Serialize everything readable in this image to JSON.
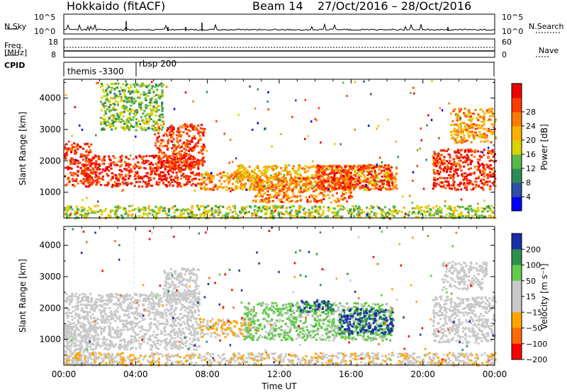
{
  "header": {
    "station": "Hokkaido (fitACF)",
    "beam": "Beam 14",
    "date_range": "27/Oct/2016 – 28/Oct/2016"
  },
  "strip": {
    "nsky_label": "N.Sky",
    "nsearch_label": "N.Search",
    "nsky_ticks": [
      "10^5",
      "10^0"
    ],
    "nsearch_ticks": [
      "10^5",
      "10^0"
    ],
    "freq_label": "Freq.",
    "freq_unit": "[MHz]",
    "freq_ticks": [
      "18",
      "8"
    ],
    "nave_label": "Nave",
    "nave_ticks": [
      "60",
      "0"
    ],
    "cpid_label": "CPID",
    "cpid_items": [
      "themis -3300",
      "rbsp 200"
    ]
  },
  "colors": {
    "power": [
      "#0000ff",
      "#2f4fa8",
      "#2e8b57",
      "#5ab84a",
      "#d8d200",
      "#ffb000",
      "#ff7a00",
      "#ff3c00",
      "#ee0000"
    ],
    "velocity": [
      "#1a2ea8",
      "#2d8f4a",
      "#63c94b",
      "#c8c8c8",
      "#c8c8c8",
      "#ffa500",
      "#ff6a00",
      "#ff0000"
    ],
    "ground_scatter": "#c8c8c8"
  },
  "chart_data": [
    {
      "type": "heatmap",
      "panel": "power",
      "ylabel": "Slant Range [km]",
      "xlabel": "Time UT",
      "x_ticks": [
        "00:00",
        "04:00",
        "08:00",
        "12:00",
        "16:00",
        "20:00",
        "00:00"
      ],
      "xlim": [
        0,
        24
      ],
      "ylim": [
        180,
        4600
      ],
      "y_ticks": [
        1000,
        2000,
        3000,
        4000
      ],
      "colorbar": {
        "label": "Power [dB]",
        "ticks": [
          "4",
          "8",
          "12",
          "16",
          "20",
          "24",
          "28"
        ],
        "range": [
          0,
          30
        ]
      },
      "regions": [
        {
          "t": [
            0.0,
            1.5
          ],
          "r": [
            1200,
            2600
          ],
          "level": 26
        },
        {
          "t": [
            1.0,
            7.5
          ],
          "r": [
            1200,
            2200
          ],
          "level": 27
        },
        {
          "t": [
            5.0,
            7.8
          ],
          "r": [
            1800,
            3200
          ],
          "level": 25
        },
        {
          "t": [
            7.5,
            11.0
          ],
          "r": [
            1100,
            1700
          ],
          "level": 20
        },
        {
          "t": [
            9.5,
            18.5
          ],
          "r": [
            1100,
            1900
          ],
          "level": 18
        },
        {
          "t": [
            10.5,
            16.0
          ],
          "r": [
            700,
            1500
          ],
          "level": 22
        },
        {
          "t": [
            14.0,
            18.3
          ],
          "r": [
            1100,
            1900
          ],
          "level": 26
        },
        {
          "t": [
            2.0,
            5.5
          ],
          "r": [
            3000,
            4500
          ],
          "level": 12
        },
        {
          "t": [
            20.5,
            24.0
          ],
          "r": [
            1100,
            2400
          ],
          "level": 26
        },
        {
          "t": [
            21.5,
            24.0
          ],
          "r": [
            2600,
            3700
          ],
          "level": 20
        },
        {
          "t": [
            0.0,
            24.0
          ],
          "r": [
            200,
            600
          ],
          "level": 14
        }
      ]
    },
    {
      "type": "heatmap",
      "panel": "velocity",
      "ylabel": "Slant Range [km]",
      "xlabel": "Time UT",
      "x_ticks": [
        "00:00",
        "04:00",
        "08:00",
        "12:00",
        "16:00",
        "20:00",
        "00:00"
      ],
      "xlim": [
        0,
        24
      ],
      "ylim": [
        180,
        4600
      ],
      "y_ticks": [
        1000,
        2000,
        3000,
        4000
      ],
      "colorbar": {
        "label": "Velocity [m s⁻¹]",
        "ticks": [
          "200",
          "100",
          "50",
          "15",
          "−15",
          "−50",
          "−100",
          "−200"
        ],
        "range": [
          -250,
          250
        ]
      },
      "regions": [
        {
          "t": [
            0.0,
            7.5
          ],
          "r": [
            700,
            2500
          ],
          "level": 0
        },
        {
          "t": [
            0.0,
            1.8
          ],
          "r": [
            200,
            1500
          ],
          "level": 0
        },
        {
          "t": [
            5.5,
            7.5
          ],
          "r": [
            2200,
            3300
          ],
          "level": 0
        },
        {
          "t": [
            7.5,
            10.5
          ],
          "r": [
            1100,
            1700
          ],
          "level": -30
        },
        {
          "t": [
            10.0,
            18.3
          ],
          "r": [
            1000,
            2200
          ],
          "level": 40
        },
        {
          "t": [
            13.0,
            15.0
          ],
          "r": [
            1900,
            2300
          ],
          "level": 150
        },
        {
          "t": [
            15.3,
            18.3
          ],
          "r": [
            1200,
            2000
          ],
          "level": 160
        },
        {
          "t": [
            20.5,
            24.0
          ],
          "r": [
            900,
            2400
          ],
          "level": 0
        },
        {
          "t": [
            21.0,
            23.5
          ],
          "r": [
            2600,
            3500
          ],
          "level": 0
        },
        {
          "t": [
            0.0,
            24.0
          ],
          "r": [
            200,
            600
          ],
          "level": -20
        }
      ]
    }
  ]
}
